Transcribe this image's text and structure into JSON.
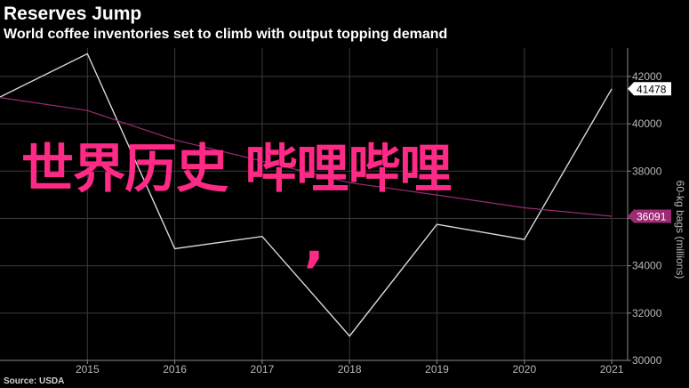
{
  "header": {
    "title": "Reserves Jump",
    "subtitle": "World coffee inventories set to climb with output topping demand"
  },
  "footer": {
    "source": "Source: USDA"
  },
  "overlay": {
    "text": "世界历史 哔哩哔哩",
    "comma": ","
  },
  "colors": {
    "background": "#000000",
    "inventory_line": "#d9d9d9",
    "consumption_line": "#9c2b74",
    "overlay_text": "#ff2a86",
    "grid": "#3a3a3a"
  },
  "chart_data": {
    "type": "line",
    "title": "Reserves Jump",
    "subtitle": "World coffee inventories set to climb with output topping demand",
    "ylabel": "60-kg bags (millions)",
    "xlabel": "",
    "x": [
      2014,
      2015,
      2016,
      2017,
      2018,
      2019,
      2020,
      2021
    ],
    "xticks": [
      "2015",
      "2016",
      "2017",
      "2018",
      "2019",
      "2020",
      "2021"
    ],
    "yticks": [
      "30000",
      "32000",
      "34000",
      "36000",
      "38000",
      "40000",
      "42000"
    ],
    "ylim": [
      30000,
      43200
    ],
    "grid": true,
    "series": [
      {
        "name": "",
        "color": "#d9d9d9",
        "values": [
          41130,
          42960,
          34720,
          35240,
          31030,
          35750,
          35110,
          41478
        ],
        "last_label": "41478"
      },
      {
        "name": "",
        "color": "#9c2b74",
        "values": [
          41110,
          40560,
          39320,
          38420,
          37510,
          36990,
          36450,
          36091
        ],
        "last_label": "36091"
      }
    ]
  }
}
